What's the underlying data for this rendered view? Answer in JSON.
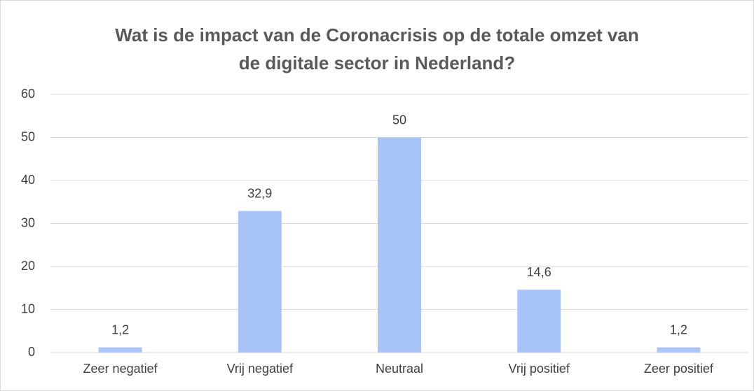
{
  "chart_data": {
    "type": "bar",
    "title": "Wat is de impact van de Coronacrisis op de totale omzet van de digitale sector in Nederland?",
    "categories": [
      "Zeer negatief",
      "Vrij negatief",
      "Neutraal",
      "Vrij positief",
      "Zeer positief"
    ],
    "values": [
      1.2,
      32.9,
      50,
      14.6,
      1.2
    ],
    "value_labels": [
      "1,2",
      "32,9",
      "50",
      "14,6",
      "1,2"
    ],
    "color": "#a9c4f9",
    "ylim": [
      0,
      60
    ],
    "yticks": [
      0,
      10,
      20,
      30,
      40,
      50,
      60
    ],
    "grid": true
  }
}
